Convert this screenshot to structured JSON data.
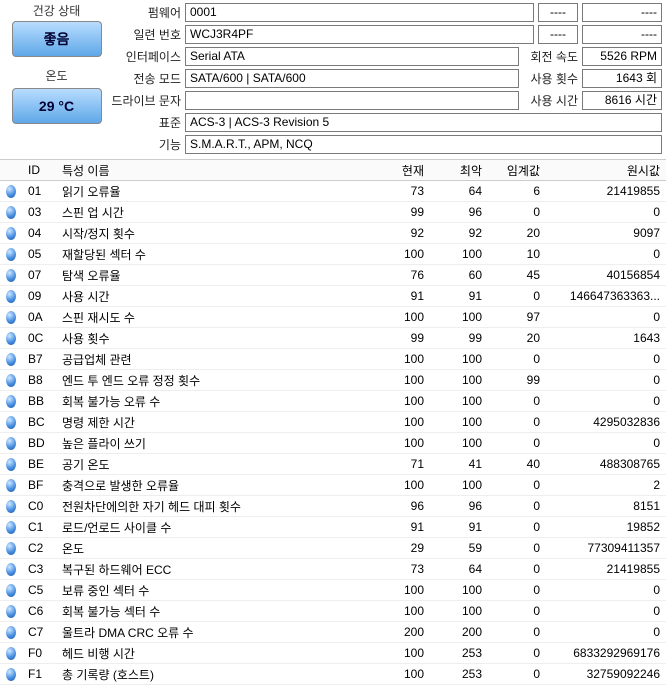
{
  "health": {
    "label": "건강 상태",
    "value": "좋음"
  },
  "temp": {
    "label": "온도",
    "value": "29 °C"
  },
  "info": {
    "firmware": {
      "label": "펌웨어",
      "value": "0001"
    },
    "serial": {
      "label": "일련 번호",
      "value": "WCJ3R4PF"
    },
    "interface": {
      "label": "인터페이스",
      "value": "Serial ATA",
      "rlabel": "회전 속도",
      "rvalue": "5526 RPM"
    },
    "transfer": {
      "label": "전송 모드",
      "value": "SATA/600 | SATA/600",
      "rlabel": "사용 횟수",
      "rvalue": "1643 회"
    },
    "drive": {
      "label": "드라이브 문자",
      "value": "",
      "rlabel": "사용 시간",
      "rvalue": "8616 시간"
    },
    "standard": {
      "label": "표준",
      "value": "ACS-3 | ACS-3 Revision 5"
    },
    "features": {
      "label": "기능",
      "value": "S.M.A.R.T., APM, NCQ"
    },
    "dash": "----"
  },
  "cols": {
    "id": "ID",
    "name": "특성 이름",
    "cur": "현재",
    "worst": "최악",
    "thr": "임계값",
    "raw": "원시값"
  },
  "rows": [
    {
      "id": "01",
      "name": "읽기 오류율",
      "cur": "73",
      "worst": "64",
      "thr": "6",
      "raw": "21419855"
    },
    {
      "id": "03",
      "name": "스핀 업 시간",
      "cur": "99",
      "worst": "96",
      "thr": "0",
      "raw": "0"
    },
    {
      "id": "04",
      "name": "시작/정지 횟수",
      "cur": "92",
      "worst": "92",
      "thr": "20",
      "raw": "9097"
    },
    {
      "id": "05",
      "name": "재할당된 섹터 수",
      "cur": "100",
      "worst": "100",
      "thr": "10",
      "raw": "0"
    },
    {
      "id": "07",
      "name": "탐색 오류율",
      "cur": "76",
      "worst": "60",
      "thr": "45",
      "raw": "40156854"
    },
    {
      "id": "09",
      "name": "사용 시간",
      "cur": "91",
      "worst": "91",
      "thr": "0",
      "raw": "146647363363..."
    },
    {
      "id": "0A",
      "name": "스핀 재시도 수",
      "cur": "100",
      "worst": "100",
      "thr": "97",
      "raw": "0"
    },
    {
      "id": "0C",
      "name": "사용 횟수",
      "cur": "99",
      "worst": "99",
      "thr": "20",
      "raw": "1643"
    },
    {
      "id": "B7",
      "name": "공급업체 관련",
      "cur": "100",
      "worst": "100",
      "thr": "0",
      "raw": "0"
    },
    {
      "id": "B8",
      "name": "엔드 투 엔드 오류 정정 횟수",
      "cur": "100",
      "worst": "100",
      "thr": "99",
      "raw": "0"
    },
    {
      "id": "BB",
      "name": "회복 불가능 오류 수",
      "cur": "100",
      "worst": "100",
      "thr": "0",
      "raw": "0"
    },
    {
      "id": "BC",
      "name": "명령 제한 시간",
      "cur": "100",
      "worst": "100",
      "thr": "0",
      "raw": "4295032836"
    },
    {
      "id": "BD",
      "name": "높은 플라이 쓰기",
      "cur": "100",
      "worst": "100",
      "thr": "0",
      "raw": "0"
    },
    {
      "id": "BE",
      "name": "공기 온도",
      "cur": "71",
      "worst": "41",
      "thr": "40",
      "raw": "488308765"
    },
    {
      "id": "BF",
      "name": "충격으로 발생한 오류율",
      "cur": "100",
      "worst": "100",
      "thr": "0",
      "raw": "2"
    },
    {
      "id": "C0",
      "name": "전원차단에의한 자기 헤드 대피 횟수",
      "cur": "96",
      "worst": "96",
      "thr": "0",
      "raw": "8151"
    },
    {
      "id": "C1",
      "name": "로드/언로드 사이클 수",
      "cur": "91",
      "worst": "91",
      "thr": "0",
      "raw": "19852"
    },
    {
      "id": "C2",
      "name": "온도",
      "cur": "29",
      "worst": "59",
      "thr": "0",
      "raw": "77309411357"
    },
    {
      "id": "C3",
      "name": "복구된 하드웨어 ECC",
      "cur": "73",
      "worst": "64",
      "thr": "0",
      "raw": "21419855"
    },
    {
      "id": "C5",
      "name": "보류 중인 섹터 수",
      "cur": "100",
      "worst": "100",
      "thr": "0",
      "raw": "0"
    },
    {
      "id": "C6",
      "name": "회복 불가능 섹터 수",
      "cur": "100",
      "worst": "100",
      "thr": "0",
      "raw": "0"
    },
    {
      "id": "C7",
      "name": "울트라 DMA CRC 오류 수",
      "cur": "200",
      "worst": "200",
      "thr": "0",
      "raw": "0"
    },
    {
      "id": "F0",
      "name": "헤드 비행 시간",
      "cur": "100",
      "worst": "253",
      "thr": "0",
      "raw": "6833292969176"
    },
    {
      "id": "F1",
      "name": "총 기록량 (호스트)",
      "cur": "100",
      "worst": "253",
      "thr": "0",
      "raw": "32759092246"
    }
  ]
}
